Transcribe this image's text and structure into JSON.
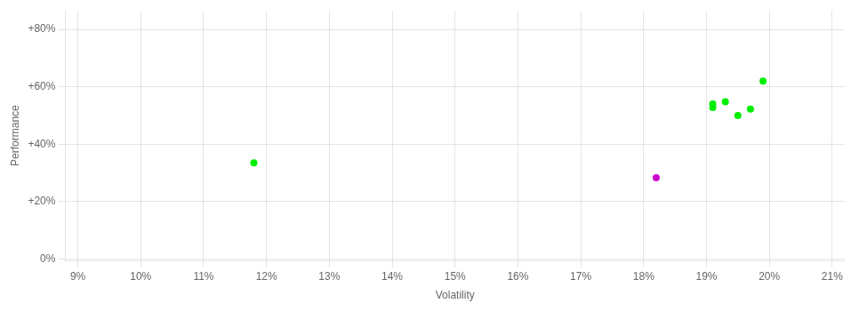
{
  "chart_data": {
    "type": "scatter",
    "xlabel": "Volatility",
    "ylabel": "Performance",
    "xlim": [
      0.088,
      0.212
    ],
    "ylim": [
      -0.005,
      0.865
    ],
    "xticks": [
      {
        "value": 0.09,
        "label": "9%"
      },
      {
        "value": 0.1,
        "label": "10%"
      },
      {
        "value": 0.11,
        "label": "11%"
      },
      {
        "value": 0.12,
        "label": "12%"
      },
      {
        "value": 0.13,
        "label": "13%"
      },
      {
        "value": 0.14,
        "label": "14%"
      },
      {
        "value": 0.15,
        "label": "15%"
      },
      {
        "value": 0.16,
        "label": "16%"
      },
      {
        "value": 0.17,
        "label": "17%"
      },
      {
        "value": 0.18,
        "label": "18%"
      },
      {
        "value": 0.19,
        "label": "19%"
      },
      {
        "value": 0.2,
        "label": "20%"
      },
      {
        "value": 0.21,
        "label": "21%"
      }
    ],
    "yticks": [
      {
        "value": 0.0,
        "label": "0%"
      },
      {
        "value": 0.2,
        "label": "+20%"
      },
      {
        "value": 0.4,
        "label": "+40%"
      },
      {
        "value": 0.6,
        "label": "+60%"
      },
      {
        "value": 0.8,
        "label": "+80%"
      }
    ],
    "grid": true,
    "series": [
      {
        "color": "#00ee00",
        "x": [
          0.118,
          0.191,
          0.191,
          0.193,
          0.197,
          0.195,
          0.199
        ],
        "values": [
          0.335,
          0.54,
          0.528,
          0.548,
          0.522,
          0.5,
          0.62
        ]
      },
      {
        "color": "#cc00cc",
        "x": [
          0.182
        ],
        "values": [
          0.283
        ]
      }
    ]
  }
}
